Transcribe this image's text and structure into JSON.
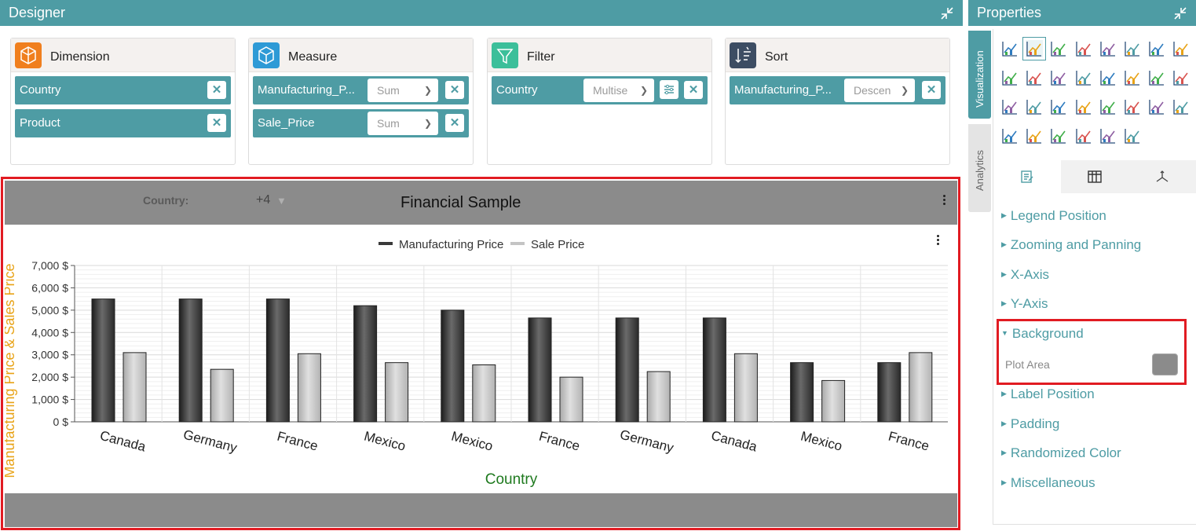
{
  "designer": {
    "title": "Designer",
    "cards": [
      {
        "title": "Dimension",
        "icon": "dimension-cube-icon",
        "icon_color": "#f07f1e",
        "fields": [
          {
            "label": "Country"
          },
          {
            "label": "Product"
          }
        ]
      },
      {
        "title": "Measure",
        "icon": "measure-box-icon",
        "icon_color": "#2e9ad6",
        "fields": [
          {
            "label": "Manufacturing_P...",
            "select": "Sum"
          },
          {
            "label": "Sale_Price",
            "select": "Sum"
          }
        ]
      },
      {
        "title": "Filter",
        "icon": "filter-funnel-icon",
        "icon_color": "#3cbf9a",
        "fields": [
          {
            "label": "Country",
            "select": "Multise"
          }
        ]
      },
      {
        "title": "Sort",
        "icon": "sort-icon",
        "icon_color": "#3d4d63",
        "fields": [
          {
            "label": "Manufacturing_P...",
            "select": "Descen"
          }
        ]
      }
    ]
  },
  "widget": {
    "filter_label": "Country:",
    "filter_value": "+4",
    "title": "Financial Sample",
    "plot_area_color": "#8b8b8b"
  },
  "chart_data": {
    "type": "bar",
    "title": "",
    "xlabel": "Country",
    "ylabel": "Manufacturing Price & Sales Price",
    "ylim": [
      0,
      7000
    ],
    "y_ticks": [
      "0 $",
      "1,000 $",
      "2,000 $",
      "3,000 $",
      "4,000 $",
      "5,000 $",
      "6,000 $",
      "7,000 $"
    ],
    "legend_position": "top-center",
    "grid": true,
    "categories": [
      "Canada",
      "Germany",
      "France",
      "Mexico",
      "Mexico",
      "France",
      "Germany",
      "Canada",
      "Mexico",
      "France"
    ],
    "series": [
      {
        "name": "Manufacturing Price",
        "color": "#3a3a3a",
        "values": [
          5500,
          5500,
          5500,
          5200,
          5000,
          4650,
          4650,
          4650,
          2650,
          2650
        ]
      },
      {
        "name": "Sale Price",
        "color": "#c4c4c4",
        "values": [
          3100,
          2350,
          3050,
          2650,
          2550,
          2000,
          2250,
          3050,
          1850,
          3100
        ]
      }
    ]
  },
  "properties": {
    "title": "Properties",
    "side_tabs": [
      "Visualization",
      "Analytics"
    ],
    "viz_icons": [
      "grid-icon",
      "line-chart-icon",
      "stacked-bar-icon",
      "area-chart-icon",
      "stacked-column-icon",
      "multi-line-icon",
      "dot-line-icon",
      "funnel-icon",
      "pie-chart-icon",
      "donut-chart-icon",
      "column-chart-icon",
      "radar-chart-icon",
      "heatmap-icon",
      "spline-icon",
      "gauge-icon",
      "thermometer-icon",
      "bar-line-icon",
      "polar-icon",
      "ring-icon",
      "pivot-grid-icon",
      "card-icon",
      "pyramid-icon",
      "bar-chart-icon",
      "combo-chart-icon",
      "kpi-icon",
      "candlestick-icon",
      "map-icon",
      "scatter-icon",
      "treemap-icon",
      "step-line-icon"
    ],
    "panel_tabs": [
      "settings-tab-icon",
      "columns-tab-icon",
      "axis-tab-icon"
    ],
    "sections": [
      {
        "label": "Legend Position",
        "expanded": false
      },
      {
        "label": "Zooming and Panning",
        "expanded": false
      },
      {
        "label": "X-Axis",
        "expanded": false
      },
      {
        "label": "Y-Axis",
        "expanded": false
      },
      {
        "label": "Background",
        "expanded": true
      },
      {
        "label": "Label Position",
        "expanded": false
      },
      {
        "label": "Padding",
        "expanded": false
      },
      {
        "label": "Randomized Color",
        "expanded": false
      },
      {
        "label": "Miscellaneous",
        "expanded": false
      }
    ],
    "background": {
      "plot_area_label": "Plot Area",
      "plot_area_color": "#8b8b8b"
    }
  }
}
